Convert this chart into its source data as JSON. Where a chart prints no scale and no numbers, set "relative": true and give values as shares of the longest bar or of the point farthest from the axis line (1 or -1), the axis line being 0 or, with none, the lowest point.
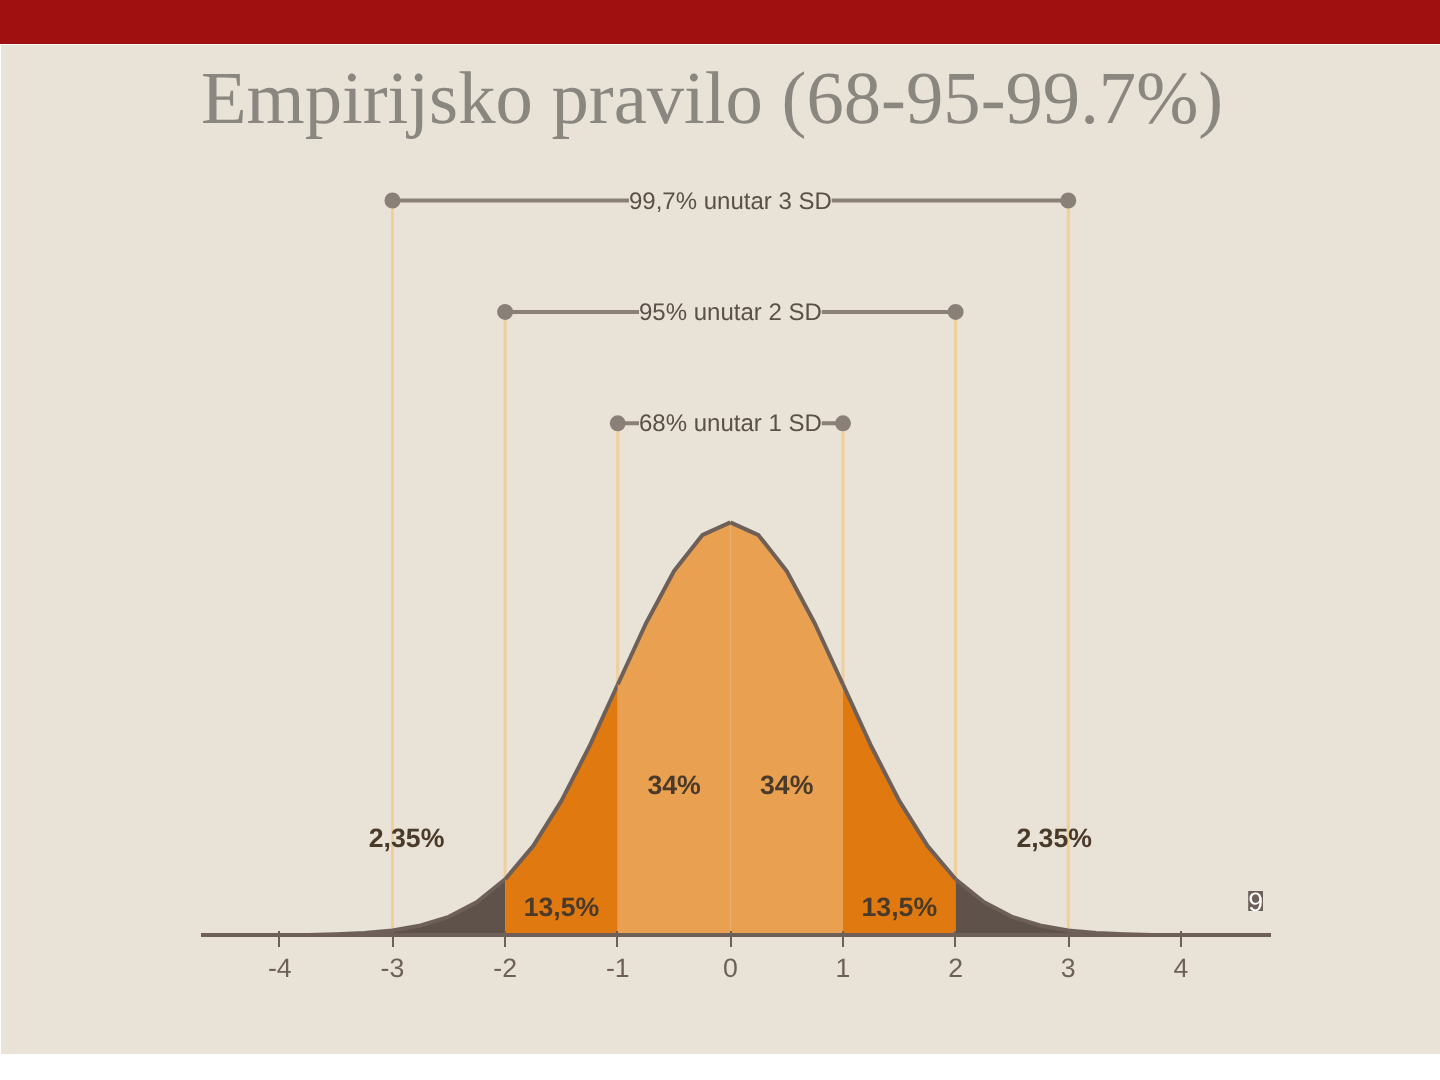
{
  "chart_data": {
    "type": "area",
    "title": "Empirijsko pravilo (68-95-99.7%)",
    "relative": true,
    "xlim": [
      -4.7,
      4.8
    ],
    "xticks": [
      -4,
      -3,
      -2,
      -1,
      0,
      1,
      2,
      3,
      4
    ],
    "series": [
      {
        "color": "#5e524a",
        "x": [
          -3.75,
          -3.5,
          -3.25,
          -3,
          -2.75,
          -2.5,
          -2.25,
          -2
        ],
        "values": [
          0,
          0.002,
          0.005,
          0.011,
          0.023,
          0.044,
          0.08,
          0.135
        ]
      },
      {
        "color": "#e07a10",
        "x": [
          -2,
          -1.75,
          -1.5,
          -1.25,
          -1
        ],
        "values": [
          0.135,
          0.216,
          0.325,
          0.458,
          0.607
        ]
      },
      {
        "color": "#e9a050",
        "x": [
          -1,
          -0.75,
          -0.5,
          -0.25,
          0
        ],
        "values": [
          0.607,
          0.755,
          0.882,
          0.969,
          1
        ]
      },
      {
        "color": "#e9a050",
        "x": [
          0,
          0.25,
          0.5,
          0.75,
          1
        ],
        "values": [
          1,
          0.969,
          0.882,
          0.755,
          0.607
        ]
      },
      {
        "color": "#e07a10",
        "x": [
          1,
          1.25,
          1.5,
          1.75,
          2
        ],
        "values": [
          0.607,
          0.458,
          0.325,
          0.216,
          0.135
        ]
      },
      {
        "color": "#5e524a",
        "x": [
          2,
          2.25,
          2.5,
          2.75,
          3,
          3.25,
          3.5,
          3.75
        ],
        "values": [
          0.135,
          0.08,
          0.044,
          0.023,
          0.011,
          0.005,
          0.002,
          0
        ]
      }
    ],
    "ref_lines": [
      {
        "axis": "x",
        "value": -3,
        "color": "#f0cf9c"
      },
      {
        "axis": "x",
        "value": -2,
        "color": "#f0cf9c"
      },
      {
        "axis": "x",
        "value": -1,
        "color": "#f0cf9c"
      },
      {
        "axis": "x",
        "value": 1,
        "color": "#f0cf9c"
      },
      {
        "axis": "x",
        "value": 2,
        "color": "#f0cf9c"
      },
      {
        "axis": "x",
        "value": 3,
        "color": "#f0cf9c"
      }
    ],
    "annotations": [
      "2,35%",
      "13,5%",
      "34%",
      "34%",
      "13,5%",
      "2,35%",
      "99,7% unutar 3 SD",
      "95% unutar 2 SD",
      "68% unutar 1 SD",
      "9"
    ]
  }
}
